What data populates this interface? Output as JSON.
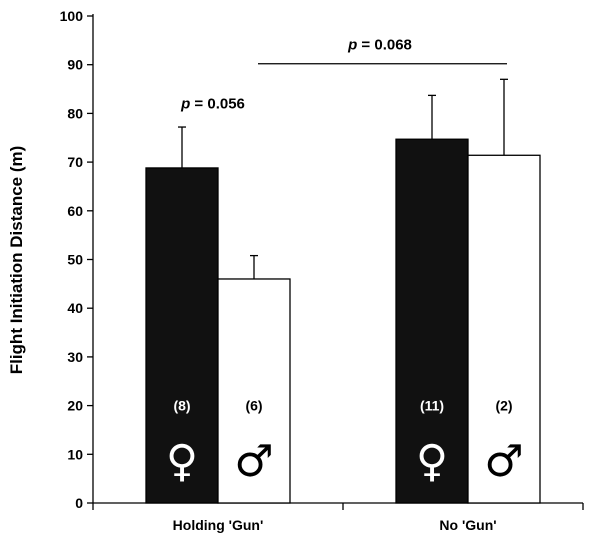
{
  "chart_data": {
    "type": "bar",
    "ylabel": "Flight Initiation Distance (m)",
    "xlabel": "",
    "ylim": [
      0,
      100
    ],
    "yticks": [
      0,
      10,
      20,
      30,
      40,
      50,
      60,
      70,
      80,
      90,
      100
    ],
    "categories": [
      "Holding 'Gun'",
      "No 'Gun'"
    ],
    "series": [
      {
        "sex": "female",
        "fill": "#111111",
        "symbol": "♀",
        "values": [
          68.8,
          74.7
        ],
        "error_upper": [
          77.2,
          83.7
        ],
        "sample_size": [
          "(8)",
          "(11)"
        ]
      },
      {
        "sex": "male",
        "fill": "#ffffff",
        "symbol": "♂",
        "values": [
          46.0,
          71.4
        ],
        "error_upper": [
          50.8,
          87.0
        ],
        "sample_size": [
          "(6)",
          "(2)"
        ]
      }
    ],
    "annotations": {
      "within_group": {
        "p_label": "p",
        "value_text": " = 0.056"
      },
      "between_groups": {
        "p_label": "p",
        "value_text": " = 0.068",
        "bracket_at": 90.2
      }
    },
    "grid": false,
    "legend": "none"
  }
}
